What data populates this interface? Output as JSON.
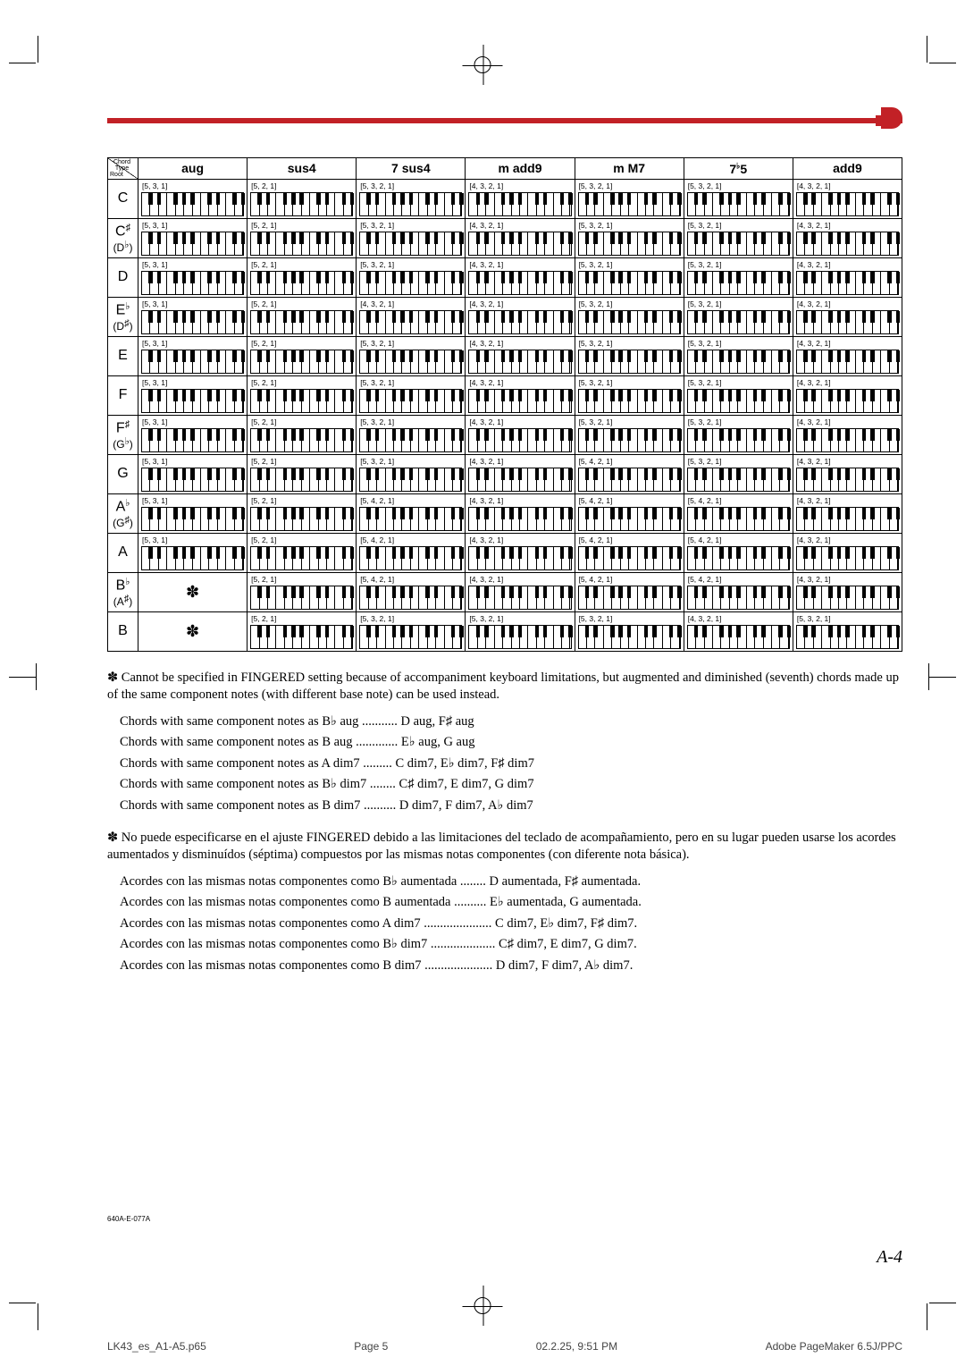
{
  "corner": {
    "root": "Root",
    "type": "Chord Type"
  },
  "chord_types": [
    "aug",
    "sus4",
    "7 sus4",
    "m add9",
    "m M7",
    "7♭5",
    "add9"
  ],
  "roots": [
    {
      "label": "C",
      "alt": ""
    },
    {
      "label": "C♯",
      "alt": "(D♭)"
    },
    {
      "label": "D",
      "alt": ""
    },
    {
      "label": "E♭",
      "alt": "(D♯)"
    },
    {
      "label": "E",
      "alt": ""
    },
    {
      "label": "F",
      "alt": ""
    },
    {
      "label": "F♯",
      "alt": "(G♭)"
    },
    {
      "label": "G",
      "alt": ""
    },
    {
      "label": "A♭",
      "alt": "(G♯)"
    },
    {
      "label": "A",
      "alt": ""
    },
    {
      "label": "B♭",
      "alt": "(A♯)"
    },
    {
      "label": "B",
      "alt": ""
    }
  ],
  "grid": [
    [
      {
        "f": "[5, 3, 1]"
      },
      {
        "f": "[5, 2, 1]"
      },
      {
        "f": "[5, 3, 2, 1]"
      },
      {
        "f": "[4, 3, 2, 1]"
      },
      {
        "f": "[5, 3, 2, 1]"
      },
      {
        "f": "[5, 3, 2, 1]"
      },
      {
        "f": "[4, 3, 2, 1]"
      }
    ],
    [
      {
        "f": "[5, 3, 1]"
      },
      {
        "f": "[5, 2, 1]"
      },
      {
        "f": "[5, 3, 2, 1]"
      },
      {
        "f": "[4, 3, 2, 1]"
      },
      {
        "f": "[5, 3, 2, 1]"
      },
      {
        "f": "[5, 3, 2, 1]"
      },
      {
        "f": "[4, 3, 2, 1]"
      }
    ],
    [
      {
        "f": "[5, 3, 1]"
      },
      {
        "f": "[5, 2, 1]"
      },
      {
        "f": "[5, 3, 2, 1]"
      },
      {
        "f": "[4, 3, 2, 1]"
      },
      {
        "f": "[5, 3, 2, 1]"
      },
      {
        "f": "[5, 3, 2, 1]"
      },
      {
        "f": "[4, 3, 2, 1]"
      }
    ],
    [
      {
        "f": "[5, 3, 1]"
      },
      {
        "f": "[5, 2, 1]"
      },
      {
        "f": "[4, 3, 2, 1]"
      },
      {
        "f": "[4, 3, 2, 1]"
      },
      {
        "f": "[5, 3, 2, 1]"
      },
      {
        "f": "[5, 3, 2, 1]"
      },
      {
        "f": "[4, 3, 2, 1]"
      }
    ],
    [
      {
        "f": "[5, 3, 1]"
      },
      {
        "f": "[5, 2, 1]"
      },
      {
        "f": "[5, 3, 2, 1]"
      },
      {
        "f": "[4, 3, 2, 1]"
      },
      {
        "f": "[5, 3, 2, 1]"
      },
      {
        "f": "[5, 3, 2, 1]"
      },
      {
        "f": "[4, 3, 2, 1]"
      }
    ],
    [
      {
        "f": "[5, 3, 1]"
      },
      {
        "f": "[5, 2, 1]"
      },
      {
        "f": "[5, 3, 2, 1]"
      },
      {
        "f": "[4, 3, 2, 1]"
      },
      {
        "f": "[5, 3, 2, 1]"
      },
      {
        "f": "[5, 3, 2, 1]"
      },
      {
        "f": "[4, 3, 2, 1]"
      }
    ],
    [
      {
        "f": "[5, 3, 1]"
      },
      {
        "f": "[5, 2, 1]"
      },
      {
        "f": "[5, 3, 2, 1]"
      },
      {
        "f": "[4, 3, 2, 1]"
      },
      {
        "f": "[5, 3, 2, 1]"
      },
      {
        "f": "[5, 3, 2, 1]"
      },
      {
        "f": "[4, 3, 2, 1]"
      }
    ],
    [
      {
        "f": "[5, 3, 1]"
      },
      {
        "f": "[5, 2, 1]"
      },
      {
        "f": "[5, 3, 2, 1]"
      },
      {
        "f": "[4, 3, 2, 1]"
      },
      {
        "f": "[5, 4, 2, 1]"
      },
      {
        "f": "[5, 3, 2, 1]"
      },
      {
        "f": "[4, 3, 2, 1]"
      }
    ],
    [
      {
        "f": "[5, 3, 1]"
      },
      {
        "f": "[5, 2, 1]"
      },
      {
        "f": "[5, 4, 2, 1]"
      },
      {
        "f": "[4, 3, 2, 1]"
      },
      {
        "f": "[5, 4, 2, 1]"
      },
      {
        "f": "[5, 4, 2, 1]"
      },
      {
        "f": "[4, 3, 2, 1]"
      }
    ],
    [
      {
        "f": "[5, 3, 1]"
      },
      {
        "f": "[5, 2, 1]"
      },
      {
        "f": "[5, 4, 2, 1]"
      },
      {
        "f": "[4, 3, 2, 1]"
      },
      {
        "f": "[5, 4, 2, 1]"
      },
      {
        "f": "[5, 4, 2, 1]"
      },
      {
        "f": "[4, 3, 2, 1]"
      }
    ],
    [
      {
        "ast": true
      },
      {
        "f": "[5, 2, 1]"
      },
      {
        "f": "[5, 4, 2, 1]"
      },
      {
        "f": "[4, 3, 2, 1]"
      },
      {
        "f": "[5, 4, 2, 1]"
      },
      {
        "f": "[5, 4, 2, 1]"
      },
      {
        "f": "[4, 3, 2, 1]"
      }
    ],
    [
      {
        "ast": true
      },
      {
        "f": "[5, 2, 1]"
      },
      {
        "f": "[5, 3, 2, 1]"
      },
      {
        "f": "[5, 3, 2, 1]"
      },
      {
        "f": "[5, 3, 2, 1]"
      },
      {
        "f": "[4, 3, 2, 1]"
      },
      {
        "f": "[5, 3, 2, 1]"
      }
    ]
  ],
  "note_en_intro": "✽ Cannot be specified in FINGERED setting because of accompaniment keyboard limitations, but augmented and diminished (seventh) chords made up of the same component notes (with different base note) can be used instead.",
  "note_en_lines": [
    "Chords with same component notes as B♭ aug ........... D aug, F♯ aug",
    "Chords with same component notes as B aug ............. E♭ aug, G aug",
    "Chords with same component notes as A dim7 ......... C dim7, E♭ dim7, F♯ dim7",
    "Chords with same component notes as B♭ dim7 ........ C♯ dim7, E dim7, G dim7",
    "Chords with same component notes as B dim7 .......... D dim7, F dim7, A♭ dim7"
  ],
  "note_es_intro": "✽ No puede especificarse en el ajuste FINGERED debido a las limitaciones del teclado de acompañamiento, pero en su lugar pueden usarse los acordes aumentados y disminuídos (séptima) compuestos por las mismas notas componentes (con diferente nota básica).",
  "note_es_lines": [
    "Acordes con las mismas notas componentes como B♭ aumentada ........ D aumentada, F♯ aumentada.",
    "Acordes con las mismas notas componentes como B aumentada .......... E♭ aumentada, G aumentada.",
    "Acordes con las mismas notas componentes como A dim7 ..................... C dim7, E♭ dim7, F♯ dim7.",
    "Acordes con las mismas notas componentes como B♭ dim7 .................... C♯ dim7, E dim7, G dim7.",
    "Acordes con las mismas notas componentes como B dim7 ..................... D dim7, F dim7, A♭ dim7."
  ],
  "page_num": "A-4",
  "tiny_code": "640A-E-077A",
  "footer": {
    "file": "LK43_es_A1-A5.p65",
    "page": "Page 5",
    "date": "02.2.25, 9:51 PM",
    "app": "Adobe PageMaker 6.5J/PPC"
  },
  "colors": {
    "red": "#c22126",
    "text": "#000000",
    "bg": "#ffffff"
  },
  "keyboard": {
    "white_count": 12,
    "black_pattern": [
      0,
      1,
      3,
      4,
      5,
      7,
      8,
      10,
      11
    ]
  }
}
